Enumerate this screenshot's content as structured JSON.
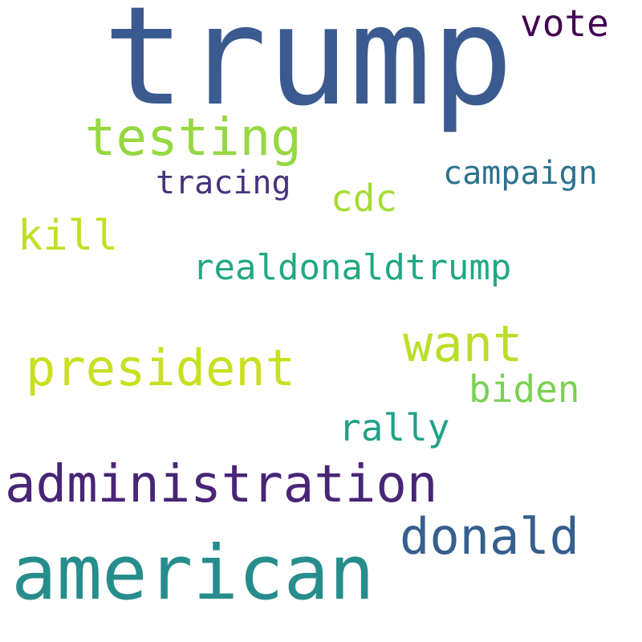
{
  "word_cloud": {
    "words": [
      {
        "text": "trump",
        "color": "#3b5a8f"
      },
      {
        "text": "american",
        "color": "#268d8c"
      },
      {
        "text": "administration",
        "color": "#482576"
      },
      {
        "text": "testing",
        "color": "#95d840"
      },
      {
        "text": "president",
        "color": "#c8e020"
      },
      {
        "text": "want",
        "color": "#bade28"
      },
      {
        "text": "donald",
        "color": "#355f8d"
      },
      {
        "text": "vote",
        "color": "#440154"
      },
      {
        "text": "realdonaldtrump",
        "color": "#22a884"
      },
      {
        "text": "rally",
        "color": "#1fa187"
      },
      {
        "text": "biden",
        "color": "#7ad151"
      },
      {
        "text": "kill",
        "color": "#c2df23"
      },
      {
        "text": "campaign",
        "color": "#2c728e"
      },
      {
        "text": "cdc",
        "color": "#a5db36"
      },
      {
        "text": "tracing",
        "color": "#46327e"
      }
    ]
  }
}
